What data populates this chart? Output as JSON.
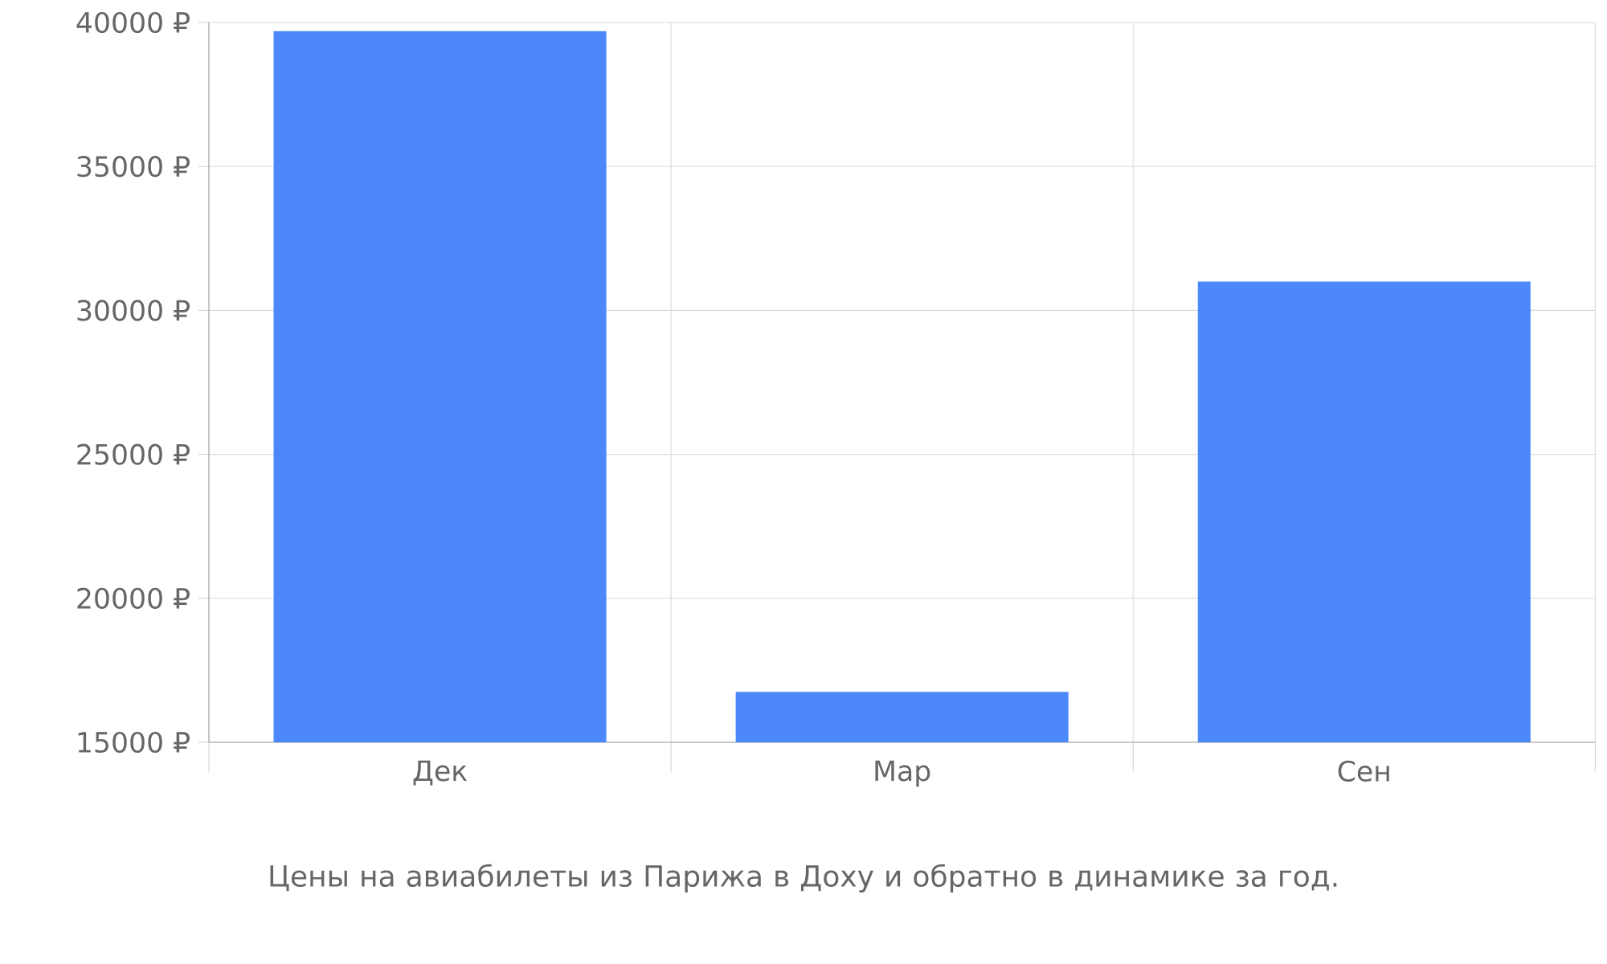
{
  "chart_data": {
    "type": "bar",
    "categories": [
      "Дек",
      "Мар",
      "Сен"
    ],
    "values": [
      39700,
      16750,
      31000
    ],
    "color": "#4d88fb",
    "ylim": [
      15000,
      40000
    ],
    "yticks": [
      {
        "value": 15000,
        "label": "15000 ₽"
      },
      {
        "value": 20000,
        "label": "20000 ₽"
      },
      {
        "value": 25000,
        "label": "25000 ₽"
      },
      {
        "value": 30000,
        "label": "30000 ₽"
      },
      {
        "value": 35000,
        "label": "35000 ₽"
      },
      {
        "value": 40000,
        "label": "40000 ₽"
      }
    ],
    "grid": true,
    "annotations": [
      "Цены на авиабилеты из Парижа в Доху и обратно в динамике за год."
    ]
  }
}
